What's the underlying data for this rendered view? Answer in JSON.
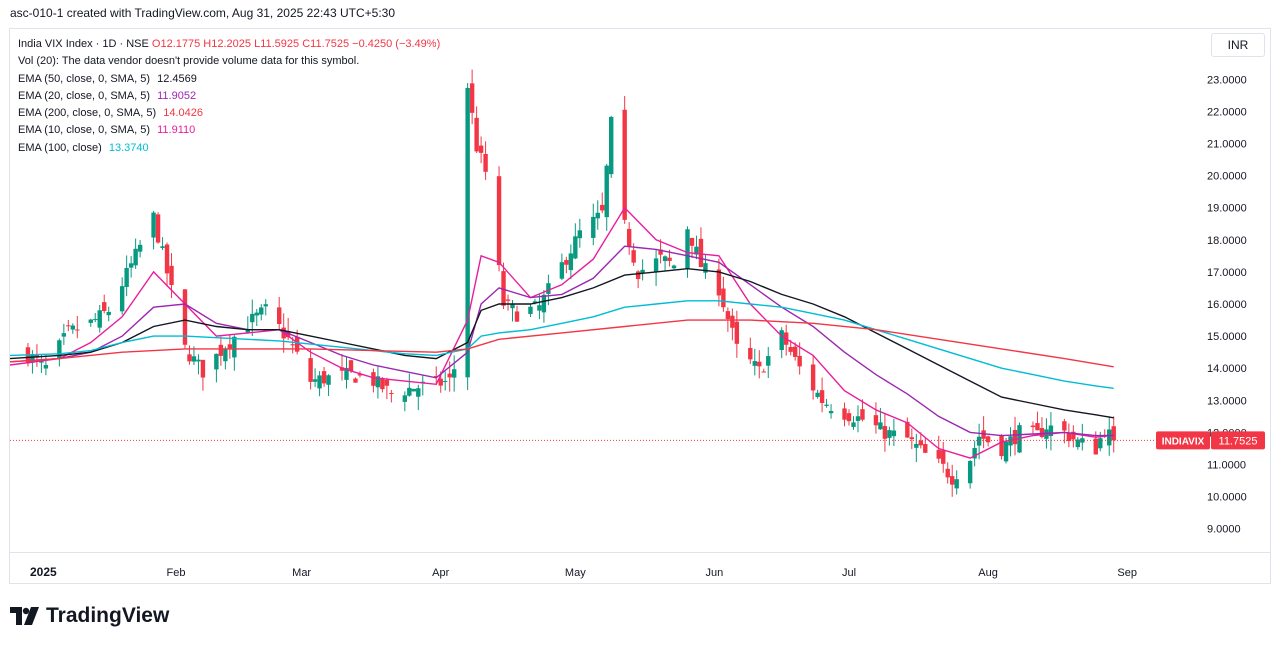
{
  "header": {
    "created_text": "asc-010-1 created with TradingView.com, Aug 31, 2025 22:43 UTC+5:30"
  },
  "currency_button": "INR",
  "legend": {
    "symbol": "India VIX Index · 1D · NSE",
    "open": "O12.1775",
    "high": "H12.2025",
    "low": "L11.5925",
    "close": "C11.7525",
    "change": "−0.4250 (−3.49%)",
    "volume_note": "Vol (20): The data vendor doesn't provide volume data for this symbol.",
    "indicators": [
      {
        "name": "EMA (50, close, 0, SMA, 5)",
        "value": "12.4569",
        "color": "#131722"
      },
      {
        "name": "EMA (20, close, 0, SMA, 5)",
        "value": "11.9052",
        "color": "#9c27b0"
      },
      {
        "name": "EMA (200, close, 0, SMA, 5)",
        "value": "14.0426",
        "color": "#f23645"
      },
      {
        "name": "EMA (10, close, 0, SMA, 5)",
        "value": "11.9110",
        "color": "#e91e9c"
      },
      {
        "name": "EMA (100, close)",
        "value": "13.3740",
        "color": "#00bcd4"
      }
    ]
  },
  "price_tag": {
    "symbol": "INDIAVIX",
    "value": "11.7525",
    "color": "#f23645"
  },
  "brand": {
    "name": "TradingView"
  },
  "chart_data": {
    "type": "candlestick",
    "title": "India VIX Index · 1D · NSE",
    "ylim": [
      8.4,
      23.6
    ],
    "y_ticks": [
      "23.0000",
      "22.0000",
      "21.0000",
      "20.0000",
      "19.0000",
      "18.0000",
      "17.0000",
      "16.0000",
      "15.0000",
      "14.0000",
      "13.0000",
      "12.0000",
      "11.0000",
      "10.0000",
      "9.0000"
    ],
    "x_ticks": [
      {
        "label": "2025",
        "date": "2025-01-01"
      },
      {
        "label": "Feb",
        "date": "2025-02-01"
      },
      {
        "label": "Mar",
        "date": "2025-03-01"
      },
      {
        "label": "Apr",
        "date": "2025-04-01"
      },
      {
        "label": "May",
        "date": "2025-05-01"
      },
      {
        "label": "Jun",
        "date": "2025-06-01"
      },
      {
        "label": "Jul",
        "date": "2025-07-01"
      },
      {
        "label": "Aug",
        "date": "2025-08-01"
      },
      {
        "label": "Sep",
        "date": "2025-09-01"
      }
    ],
    "x_range": [
      "2024-12-26",
      "2025-09-15"
    ],
    "up_color": "#089981",
    "down_color": "#f23645",
    "last_value": 11.7525,
    "key_points": [
      [
        "2024-12-30",
        14.4
      ],
      [
        "2025-01-03",
        14.0
      ],
      [
        "2025-01-08",
        15.1
      ],
      [
        "2025-01-13",
        15.4
      ],
      [
        "2025-01-17",
        15.8
      ],
      [
        "2025-01-22",
        17.2
      ],
      [
        "2025-01-27",
        18.7
      ],
      [
        "2025-01-31",
        16.4
      ],
      [
        "2025-02-03",
        14.6
      ],
      [
        "2025-02-07",
        13.9
      ],
      [
        "2025-02-12",
        14.7
      ],
      [
        "2025-02-17",
        15.4
      ],
      [
        "2025-02-21",
        15.8
      ],
      [
        "2025-02-26",
        14.9
      ],
      [
        "2025-03-03",
        13.6
      ],
      [
        "2025-03-07",
        13.7
      ],
      [
        "2025-03-12",
        13.8
      ],
      [
        "2025-03-17",
        13.6
      ],
      [
        "2025-03-21",
        13.2
      ],
      [
        "2025-03-26",
        13.4
      ],
      [
        "2025-03-31",
        13.5
      ],
      [
        "2025-04-03",
        13.6
      ],
      [
        "2025-04-04",
        14.0
      ],
      [
        "2025-04-07",
        22.8
      ],
      [
        "2025-04-09",
        20.9
      ],
      [
        "2025-04-11",
        20.1
      ],
      [
        "2025-04-15",
        16.0
      ],
      [
        "2025-04-18",
        15.7
      ],
      [
        "2025-04-23",
        15.9
      ],
      [
        "2025-04-28",
        17.2
      ],
      [
        "2025-05-02",
        18.2
      ],
      [
        "2025-05-07",
        18.8
      ],
      [
        "2025-05-09",
        21.6
      ],
      [
        "2025-05-12",
        18.4
      ],
      [
        "2025-05-15",
        17.0
      ],
      [
        "2025-05-20",
        17.4
      ],
      [
        "2025-05-23",
        17.2
      ],
      [
        "2025-05-26",
        18.4
      ],
      [
        "2025-05-29",
        17.2
      ],
      [
        "2025-06-02",
        16.5
      ],
      [
        "2025-06-06",
        14.6
      ],
      [
        "2025-06-11",
        13.9
      ],
      [
        "2025-06-16",
        15.0
      ],
      [
        "2025-06-20",
        14.0
      ],
      [
        "2025-06-25",
        13.0
      ],
      [
        "2025-06-30",
        12.6
      ],
      [
        "2025-07-04",
        12.4
      ],
      [
        "2025-07-09",
        12.0
      ],
      [
        "2025-07-14",
        11.8
      ],
      [
        "2025-07-18",
        11.3
      ],
      [
        "2025-07-22",
        10.9
      ],
      [
        "2025-07-24",
        10.6
      ],
      [
        "2025-07-28",
        11.2
      ],
      [
        "2025-07-30",
        11.9
      ],
      [
        "2025-08-04",
        11.5
      ],
      [
        "2025-08-08",
        12.0
      ],
      [
        "2025-08-12",
        11.9
      ],
      [
        "2025-08-14",
        12.2
      ],
      [
        "2025-08-18",
        12.0
      ],
      [
        "2025-08-21",
        11.7
      ],
      [
        "2025-08-25",
        11.5
      ],
      [
        "2025-08-27",
        12.1
      ],
      [
        "2025-08-29",
        11.75
      ]
    ],
    "series": [
      {
        "name": "EMA (10, close, 0, SMA, 5)",
        "color": "#e91e9c",
        "points": [
          [
            "2024-12-26",
            14.1
          ],
          [
            "2025-01-06",
            14.3
          ],
          [
            "2025-01-13",
            14.8
          ],
          [
            "2025-01-20",
            15.6
          ],
          [
            "2025-01-27",
            17.0
          ],
          [
            "2025-02-03",
            16.0
          ],
          [
            "2025-02-10",
            15.0
          ],
          [
            "2025-02-17",
            15.1
          ],
          [
            "2025-02-24",
            15.2
          ],
          [
            "2025-03-03",
            14.5
          ],
          [
            "2025-03-10",
            14.0
          ],
          [
            "2025-03-17",
            13.7
          ],
          [
            "2025-03-24",
            13.6
          ],
          [
            "2025-03-31",
            13.5
          ],
          [
            "2025-04-07",
            15.5
          ],
          [
            "2025-04-10",
            17.5
          ],
          [
            "2025-04-14",
            17.3
          ],
          [
            "2025-04-21",
            16.2
          ],
          [
            "2025-04-28",
            16.6
          ],
          [
            "2025-05-05",
            17.4
          ],
          [
            "2025-05-12",
            19.0
          ],
          [
            "2025-05-19",
            18.0
          ],
          [
            "2025-05-26",
            17.6
          ],
          [
            "2025-06-02",
            17.5
          ],
          [
            "2025-06-09",
            16.0
          ],
          [
            "2025-06-16",
            15.0
          ],
          [
            "2025-06-23",
            14.4
          ],
          [
            "2025-06-30",
            13.3
          ],
          [
            "2025-07-07",
            12.7
          ],
          [
            "2025-07-14",
            12.3
          ],
          [
            "2025-07-21",
            11.5
          ],
          [
            "2025-07-28",
            11.2
          ],
          [
            "2025-08-04",
            11.7
          ],
          [
            "2025-08-11",
            11.9
          ],
          [
            "2025-08-18",
            12.0
          ],
          [
            "2025-08-25",
            11.85
          ],
          [
            "2025-08-29",
            11.91
          ]
        ]
      },
      {
        "name": "EMA (20, close, 0, SMA, 5)",
        "color": "#9c27b0",
        "points": [
          [
            "2024-12-26",
            14.2
          ],
          [
            "2025-01-06",
            14.3
          ],
          [
            "2025-01-13",
            14.5
          ],
          [
            "2025-01-20",
            15.0
          ],
          [
            "2025-01-27",
            15.9
          ],
          [
            "2025-02-03",
            16.0
          ],
          [
            "2025-02-10",
            15.4
          ],
          [
            "2025-02-17",
            15.2
          ],
          [
            "2025-02-24",
            15.2
          ],
          [
            "2025-03-03",
            14.8
          ],
          [
            "2025-03-10",
            14.4
          ],
          [
            "2025-03-17",
            14.1
          ],
          [
            "2025-03-24",
            13.9
          ],
          [
            "2025-03-31",
            13.7
          ],
          [
            "2025-04-07",
            14.5
          ],
          [
            "2025-04-10",
            16.0
          ],
          [
            "2025-04-14",
            16.5
          ],
          [
            "2025-04-21",
            16.2
          ],
          [
            "2025-04-28",
            16.3
          ],
          [
            "2025-05-05",
            16.8
          ],
          [
            "2025-05-12",
            17.8
          ],
          [
            "2025-05-19",
            17.7
          ],
          [
            "2025-05-26",
            17.5
          ],
          [
            "2025-06-02",
            17.3
          ],
          [
            "2025-06-09",
            16.6
          ],
          [
            "2025-06-16",
            15.9
          ],
          [
            "2025-06-23",
            15.3
          ],
          [
            "2025-06-30",
            14.5
          ],
          [
            "2025-07-07",
            13.8
          ],
          [
            "2025-07-14",
            13.2
          ],
          [
            "2025-07-21",
            12.5
          ],
          [
            "2025-07-28",
            12.0
          ],
          [
            "2025-08-04",
            11.9
          ],
          [
            "2025-08-11",
            11.95
          ],
          [
            "2025-08-18",
            12.0
          ],
          [
            "2025-08-25",
            11.9
          ],
          [
            "2025-08-29",
            11.9052
          ]
        ]
      },
      {
        "name": "EMA (50, close, 0, SMA, 5)",
        "color": "#131722",
        "points": [
          [
            "2024-12-26",
            14.3
          ],
          [
            "2025-01-06",
            14.4
          ],
          [
            "2025-01-13",
            14.5
          ],
          [
            "2025-01-20",
            14.8
          ],
          [
            "2025-01-27",
            15.3
          ],
          [
            "2025-02-03",
            15.5
          ],
          [
            "2025-02-10",
            15.3
          ],
          [
            "2025-02-17",
            15.2
          ],
          [
            "2025-02-24",
            15.2
          ],
          [
            "2025-03-03",
            15.0
          ],
          [
            "2025-03-10",
            14.8
          ],
          [
            "2025-03-17",
            14.6
          ],
          [
            "2025-03-24",
            14.4
          ],
          [
            "2025-03-31",
            14.3
          ],
          [
            "2025-04-07",
            14.8
          ],
          [
            "2025-04-10",
            15.8
          ],
          [
            "2025-04-14",
            16.0
          ],
          [
            "2025-04-21",
            16.0
          ],
          [
            "2025-04-28",
            16.2
          ],
          [
            "2025-05-05",
            16.5
          ],
          [
            "2025-05-12",
            16.9
          ],
          [
            "2025-05-19",
            17.0
          ],
          [
            "2025-05-26",
            17.1
          ],
          [
            "2025-06-02",
            17.0
          ],
          [
            "2025-06-09",
            16.7
          ],
          [
            "2025-06-16",
            16.3
          ],
          [
            "2025-06-23",
            16.0
          ],
          [
            "2025-06-30",
            15.6
          ],
          [
            "2025-07-07",
            15.1
          ],
          [
            "2025-07-14",
            14.6
          ],
          [
            "2025-07-21",
            14.1
          ],
          [
            "2025-07-28",
            13.6
          ],
          [
            "2025-08-04",
            13.1
          ],
          [
            "2025-08-11",
            12.9
          ],
          [
            "2025-08-18",
            12.7
          ],
          [
            "2025-08-25",
            12.55
          ],
          [
            "2025-08-29",
            12.4569
          ]
        ]
      },
      {
        "name": "EMA (100, close)",
        "color": "#00bcd4",
        "points": [
          [
            "2024-12-26",
            14.4
          ],
          [
            "2025-01-06",
            14.45
          ],
          [
            "2025-01-13",
            14.55
          ],
          [
            "2025-01-20",
            14.8
          ],
          [
            "2025-01-27",
            15.0
          ],
          [
            "2025-02-03",
            15.0
          ],
          [
            "2025-02-10",
            14.95
          ],
          [
            "2025-02-17",
            14.9
          ],
          [
            "2025-02-24",
            14.85
          ],
          [
            "2025-03-03",
            14.75
          ],
          [
            "2025-03-10",
            14.65
          ],
          [
            "2025-03-17",
            14.55
          ],
          [
            "2025-03-24",
            14.45
          ],
          [
            "2025-03-31",
            14.4
          ],
          [
            "2025-04-07",
            14.6
          ],
          [
            "2025-04-10",
            15.0
          ],
          [
            "2025-04-14",
            15.1
          ],
          [
            "2025-04-21",
            15.2
          ],
          [
            "2025-04-28",
            15.4
          ],
          [
            "2025-05-05",
            15.6
          ],
          [
            "2025-05-12",
            15.9
          ],
          [
            "2025-05-19",
            16.0
          ],
          [
            "2025-05-26",
            16.1
          ],
          [
            "2025-06-02",
            16.1
          ],
          [
            "2025-06-09",
            16.0
          ],
          [
            "2025-06-16",
            15.9
          ],
          [
            "2025-06-23",
            15.7
          ],
          [
            "2025-06-30",
            15.5
          ],
          [
            "2025-07-07",
            15.2
          ],
          [
            "2025-07-14",
            14.9
          ],
          [
            "2025-07-21",
            14.6
          ],
          [
            "2025-07-28",
            14.3
          ],
          [
            "2025-08-04",
            14.0
          ],
          [
            "2025-08-11",
            13.8
          ],
          [
            "2025-08-18",
            13.6
          ],
          [
            "2025-08-25",
            13.45
          ],
          [
            "2025-08-29",
            13.374
          ]
        ]
      },
      {
        "name": "EMA (200, close, 0, SMA, 5)",
        "color": "#f23645",
        "points": [
          [
            "2024-12-26",
            14.2
          ],
          [
            "2025-01-06",
            14.3
          ],
          [
            "2025-01-20",
            14.5
          ],
          [
            "2025-02-03",
            14.6
          ],
          [
            "2025-02-17",
            14.6
          ],
          [
            "2025-03-03",
            14.6
          ],
          [
            "2025-03-17",
            14.55
          ],
          [
            "2025-03-31",
            14.5
          ],
          [
            "2025-04-07",
            14.6
          ],
          [
            "2025-04-14",
            14.9
          ],
          [
            "2025-04-28",
            15.1
          ],
          [
            "2025-05-12",
            15.3
          ],
          [
            "2025-05-26",
            15.5
          ],
          [
            "2025-06-09",
            15.5
          ],
          [
            "2025-06-23",
            15.4
          ],
          [
            "2025-07-07",
            15.2
          ],
          [
            "2025-07-21",
            14.9
          ],
          [
            "2025-08-04",
            14.6
          ],
          [
            "2025-08-18",
            14.3
          ],
          [
            "2025-08-29",
            14.0426
          ]
        ]
      }
    ]
  }
}
